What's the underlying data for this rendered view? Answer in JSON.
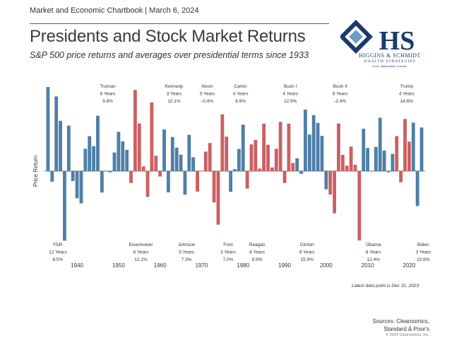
{
  "header": {
    "chartbook": "Market and Economic Chartbook | March 6, 2024",
    "title": "Presidents and Stock Market Returns",
    "subtitle": "S&P 500 price returns and averages over presidential terms since 1933"
  },
  "logo": {
    "monogram": "HS",
    "firm": "HIGGINS & SCHMIDT",
    "division": "WEALTH STRATEGIES",
    "tagline": "local. independent. trusted."
  },
  "colors": {
    "democrat": "#4f7fa8",
    "republican": "#cc5f62",
    "text": "#2a2a2a",
    "brand": "#1c3a6b"
  },
  "footnote": "Latest data point is Dec 31, 2023",
  "sources": {
    "line1": "Sources: Clearnomics,",
    "line2": "Standard & Poor's"
  },
  "copyright": "© 2024 Clearnomics, Inc.",
  "chart_data": {
    "type": "bar",
    "ylabel": "Price Return",
    "x": [
      1933,
      1934,
      1935,
      1936,
      1937,
      1938,
      1939,
      1940,
      1941,
      1942,
      1943,
      1944,
      1945,
      1946,
      1947,
      1948,
      1949,
      1950,
      1951,
      1952,
      1953,
      1954,
      1955,
      1956,
      1957,
      1958,
      1959,
      1960,
      1961,
      1962,
      1963,
      1964,
      1965,
      1966,
      1967,
      1968,
      1969,
      1970,
      1971,
      1972,
      1973,
      1974,
      1975,
      1976,
      1977,
      1978,
      1979,
      1980,
      1981,
      1982,
      1983,
      1984,
      1985,
      1986,
      1987,
      1988,
      1989,
      1990,
      1991,
      1992,
      1993,
      1994,
      1995,
      1996,
      1997,
      1998,
      1999,
      2000,
      2001,
      2002,
      2003,
      2004,
      2005,
      2006,
      2007,
      2008,
      2009,
      2010,
      2011,
      2012,
      2013,
      2014,
      2015,
      2016,
      2017,
      2018,
      2019,
      2020,
      2021,
      2022,
      2023
    ],
    "values": [
      46.6,
      -5.9,
      41.4,
      27.9,
      -38.6,
      25.2,
      -5.5,
      -15.1,
      -17.9,
      12.4,
      19.4,
      13.8,
      30.7,
      -11.9,
      0,
      -0.7,
      10.3,
      21.8,
      16.5,
      11.8,
      -6.6,
      45.0,
      26.4,
      2.6,
      -14.3,
      38.1,
      8.5,
      -3.0,
      23.1,
      -11.8,
      18.9,
      13.0,
      9.1,
      -13.1,
      20.1,
      7.7,
      -11.4,
      0.1,
      10.8,
      15.6,
      -17.4,
      -29.7,
      31.5,
      19.1,
      -11.5,
      1.1,
      12.3,
      25.8,
      -9.7,
      14.8,
      17.3,
      1.4,
      26.3,
      14.6,
      2.0,
      12.4,
      27.3,
      -6.6,
      26.3,
      4.5,
      7.1,
      -1.5,
      34.1,
      20.3,
      31.0,
      26.7,
      19.5,
      -10.1,
      -13.0,
      -23.4,
      26.4,
      9.0,
      3.0,
      13.6,
      3.5,
      -38.5,
      23.5,
      12.8,
      0,
      13.4,
      29.6,
      11.4,
      -0.7,
      9.5,
      19.4,
      -6.2,
      28.9,
      16.3,
      26.9,
      -19.4,
      24.2
    ],
    "party": [
      "D",
      "D",
      "D",
      "D",
      "D",
      "D",
      "D",
      "D",
      "D",
      "D",
      "D",
      "D",
      "D",
      "D",
      "D",
      "D",
      "D",
      "D",
      "D",
      "D",
      "R",
      "R",
      "R",
      "R",
      "R",
      "R",
      "R",
      "R",
      "D",
      "D",
      "D",
      "D",
      "D",
      "D",
      "D",
      "D",
      "R",
      "R",
      "R",
      "R",
      "R",
      "R",
      "R",
      "R",
      "D",
      "D",
      "D",
      "D",
      "R",
      "R",
      "R",
      "R",
      "R",
      "R",
      "R",
      "R",
      "R",
      "R",
      "R",
      "R",
      "D",
      "D",
      "D",
      "D",
      "D",
      "D",
      "D",
      "D",
      "R",
      "R",
      "R",
      "R",
      "R",
      "R",
      "R",
      "R",
      "D",
      "D",
      "D",
      "D",
      "D",
      "D",
      "D",
      "D",
      "R",
      "R",
      "R",
      "R",
      "D",
      "D",
      "D"
    ],
    "ylim": [
      -40,
      50
    ],
    "xticks": [
      "1940",
      "1950",
      "1960",
      "1970",
      "1980",
      "1990",
      "2000",
      "2010",
      "2020"
    ],
    "presidents": [
      {
        "name": "FDR",
        "term": "12 Years",
        "avg": "8.5%",
        "start": 1933,
        "pos": "below"
      },
      {
        "name": "Truman",
        "term": "8 Years",
        "avg": "9.8%",
        "start": 1945,
        "pos": "above"
      },
      {
        "name": "Eisenhower",
        "term": "8 Years",
        "avg": "12.1%",
        "start": 1953,
        "pos": "below"
      },
      {
        "name": "Kennedy",
        "term": "3 Years",
        "avg": "10.1%",
        "start": 1961,
        "pos": "above"
      },
      {
        "name": "Johnson",
        "term": "5 Years",
        "avg": "7.3%",
        "start": 1964,
        "pos": "below"
      },
      {
        "name": "Nixon",
        "term": "5 Years",
        "avg": "-0.4%",
        "start": 1969,
        "pos": "above"
      },
      {
        "name": "Ford",
        "term": "3 Years",
        "avg": "7.0%",
        "start": 1974,
        "pos": "below"
      },
      {
        "name": "Carter",
        "term": "4 Years",
        "avg": "6.9%",
        "start": 1977,
        "pos": "above"
      },
      {
        "name": "Reagan",
        "term": "8 Years",
        "avg": "9.9%",
        "start": 1981,
        "pos": "below"
      },
      {
        "name": "Bush I",
        "term": "4 Years",
        "avg": "12.9%",
        "start": 1989,
        "pos": "above"
      },
      {
        "name": "Clinton",
        "term": "8 Years",
        "avg": "15.9%",
        "start": 1993,
        "pos": "below"
      },
      {
        "name": "Bush II",
        "term": "8 Years",
        "avg": "-2.4%",
        "start": 2001,
        "pos": "above"
      },
      {
        "name": "Obama",
        "term": "8 Years",
        "avg": "12.4%",
        "start": 2009,
        "pos": "below"
      },
      {
        "name": "Trump",
        "term": "4 Years",
        "avg": "14.6%",
        "start": 2017,
        "pos": "above"
      },
      {
        "name": "Biden",
        "term": "3 Years",
        "avg": "10.6%",
        "start": 2021,
        "pos": "below"
      }
    ]
  }
}
